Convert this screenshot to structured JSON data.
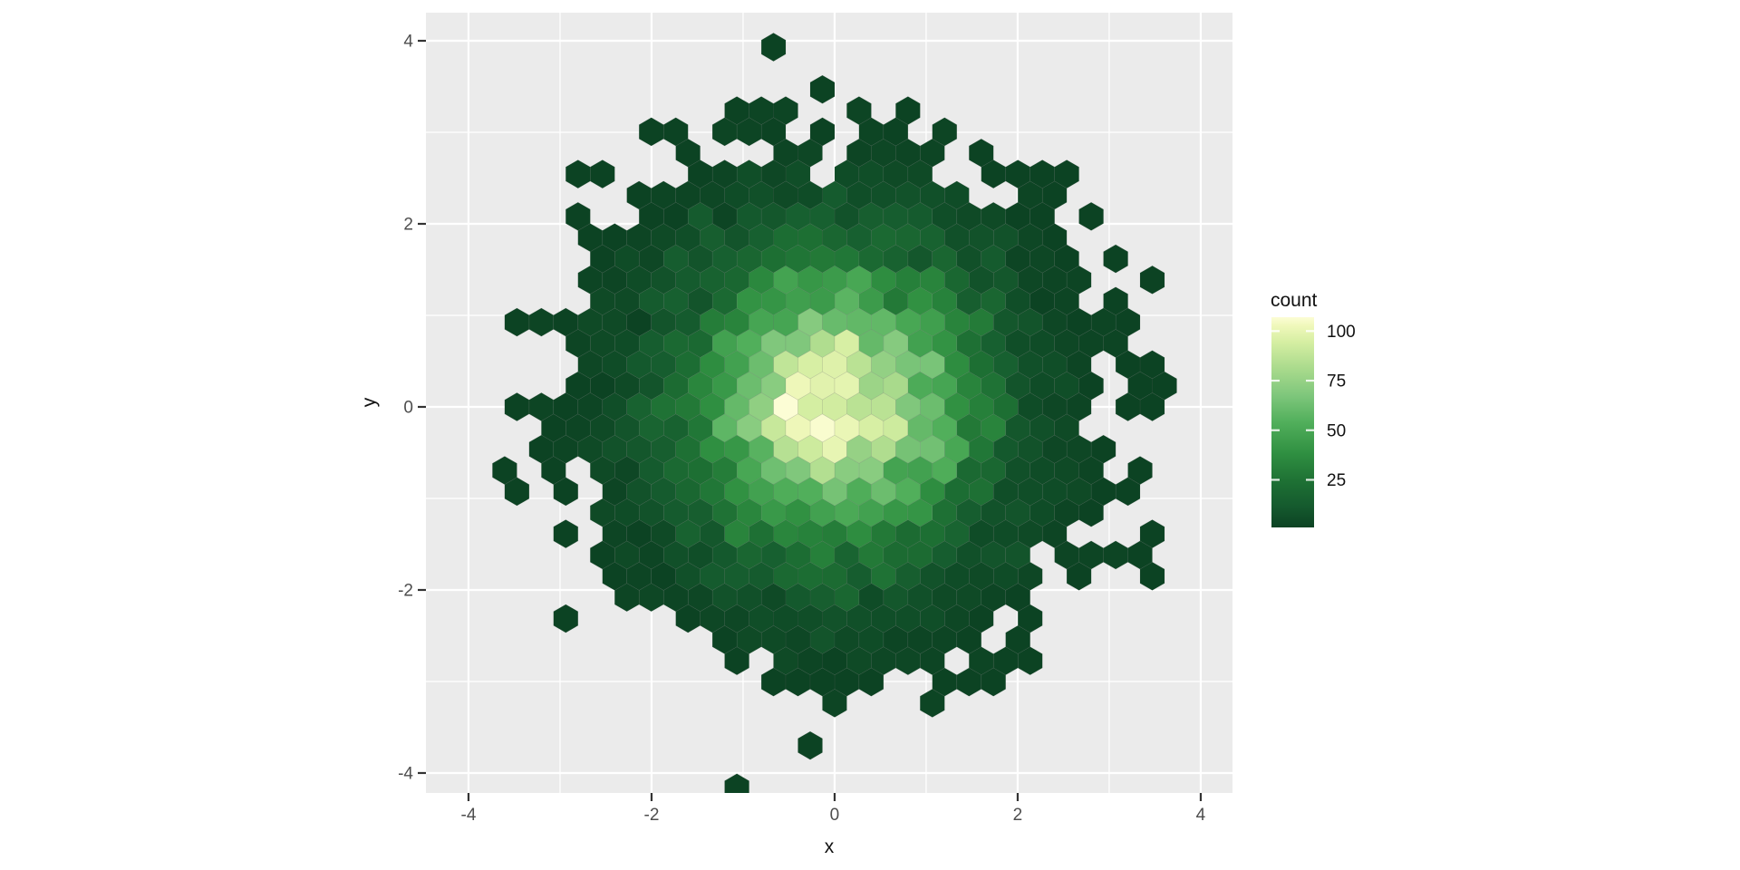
{
  "page": {
    "background": "#ffffff"
  },
  "chart_data": {
    "type": "hexbin",
    "title": "",
    "xlabel": "x",
    "ylabel": "y",
    "x_ticks": [
      {
        "value": -4,
        "label": "-4"
      },
      {
        "value": -2,
        "label": "-2"
      },
      {
        "value": 0,
        "label": "0"
      },
      {
        "value": 2,
        "label": "2"
      },
      {
        "value": 4,
        "label": "4"
      }
    ],
    "y_ticks": [
      {
        "value": -4,
        "label": "-4"
      },
      {
        "value": -2,
        "label": "-2"
      },
      {
        "value": 0,
        "label": "0"
      },
      {
        "value": 2,
        "label": "2"
      },
      {
        "value": 4,
        "label": "4"
      }
    ],
    "x_minor_gridlines": [
      -3,
      -1,
      1,
      3
    ],
    "y_minor_gridlines": [
      -3,
      -1,
      1,
      3
    ],
    "xlim": [
      -4.465,
      4.347
    ],
    "ylim": [
      -4.218,
      4.307
    ],
    "grid": "on",
    "legend": {
      "title": "count",
      "breaks": [
        100,
        75,
        50,
        25
      ],
      "domain_min": 1,
      "domain_max": 109,
      "position": "right"
    },
    "hex": {
      "orientation": "pointy-top",
      "width_units": 0.267,
      "bins": 30
    },
    "distribution": {
      "kind": "bivariate-normal",
      "mean": [
        0,
        0
      ],
      "sd": [
        1,
        1
      ],
      "n": 10400,
      "seed": 20
    },
    "colors": {
      "panel_background": "#EBEBEB",
      "grid_major": "#FFFFFF",
      "grid_minor": "#FFFFFF",
      "axis_text": "#4D4D4D",
      "axis_title": "#111111",
      "tick_marks": "#333333",
      "legend_text": "#111111",
      "gradient_stops": [
        {
          "t": 0.0,
          "color": "#0C4323"
        },
        {
          "t": 0.1,
          "color": "#155A2E"
        },
        {
          "t": 0.22,
          "color": "#1E7134"
        },
        {
          "t": 0.35,
          "color": "#2F8F41"
        },
        {
          "t": 0.5,
          "color": "#51AF5B"
        },
        {
          "t": 0.63,
          "color": "#7FC77C"
        },
        {
          "t": 0.76,
          "color": "#ABDB8D"
        },
        {
          "t": 0.88,
          "color": "#D5EEA2"
        },
        {
          "t": 0.96,
          "color": "#F0F8BB"
        },
        {
          "t": 1.0,
          "color": "#FCFDD5"
        }
      ]
    }
  }
}
